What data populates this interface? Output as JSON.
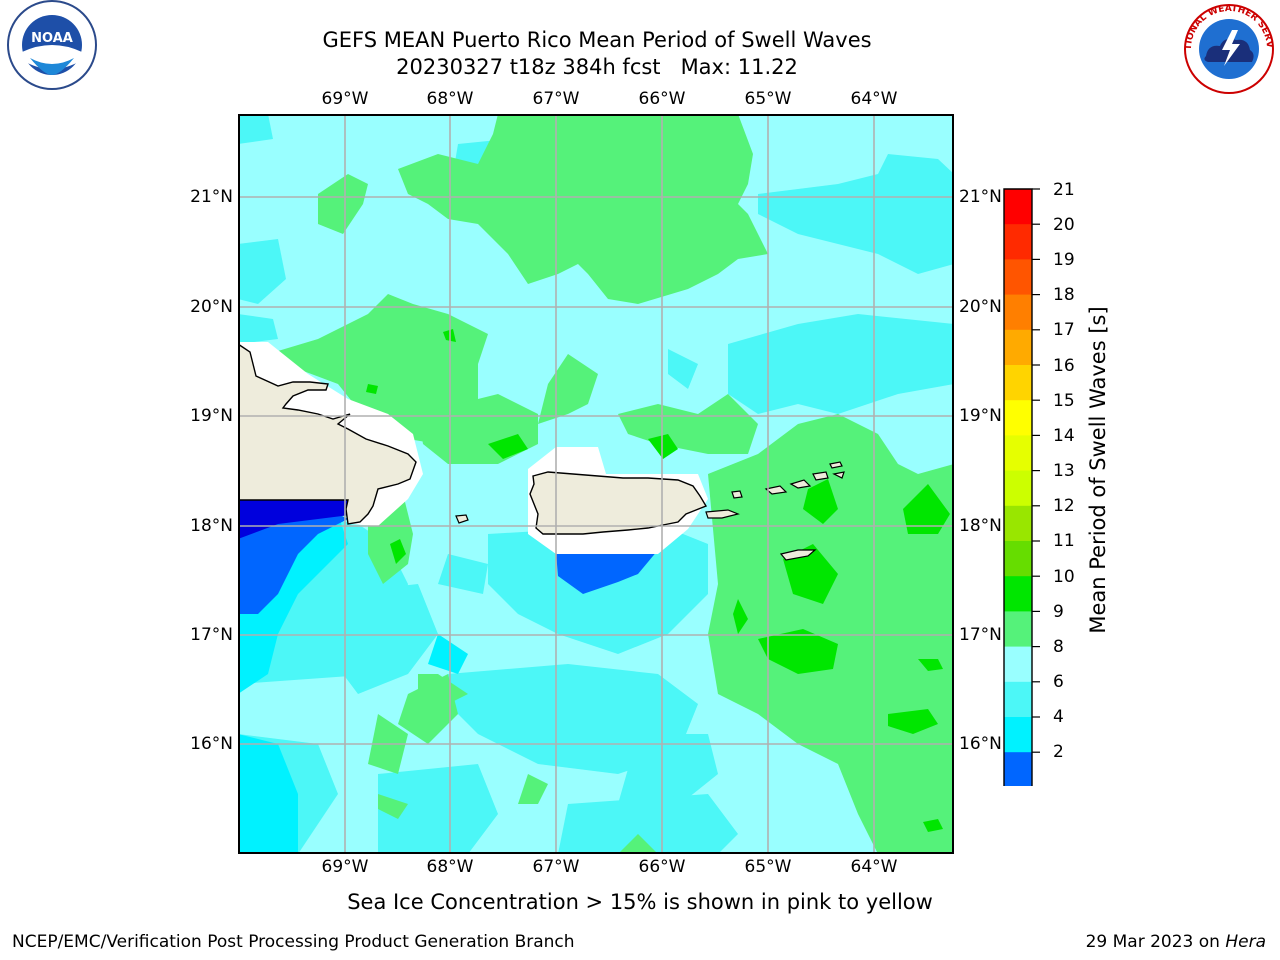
{
  "header": {
    "title_line1": "GEFS MEAN Puerto Rico Mean Period of Swell Waves",
    "title_line2": "20230327 t18z 384h fcst   Max: 11.22"
  },
  "map": {
    "lon_labels": [
      "69°W",
      "68°W",
      "67°W",
      "66°W",
      "65°W",
      "64°W"
    ],
    "lat_labels": [
      "21°N",
      "20°N",
      "19°N",
      "18°N",
      "17°N",
      "16°N"
    ],
    "colors": {
      "land": "#eeecdc",
      "ocean_light_cyan": "#99ffff",
      "ocean_cyan": "#4cf7f7",
      "ocean_aqua": "#00f2ff",
      "green_9": "#55f27a",
      "green_10": "#00e600",
      "blue_4": "#0066ff",
      "blue_2": "#0000dd"
    }
  },
  "colorbar": {
    "title": "Mean Period of Swell Waves [s]",
    "tick_labels": [
      "21",
      "20",
      "19",
      "18",
      "17",
      "16",
      "15",
      "14",
      "13",
      "12",
      "11",
      "10",
      "9",
      "8",
      "6",
      "4",
      "2"
    ],
    "colors": [
      "#ff0000",
      "#ff2a00",
      "#ff5500",
      "#ff7f00",
      "#ffaa00",
      "#ffd400",
      "#ffff00",
      "#e6ff00",
      "#ccff00",
      "#99e600",
      "#66dd00",
      "#00e600",
      "#55f27a",
      "#99ffff",
      "#4cf7f7",
      "#00f2ff",
      "#0066ff"
    ],
    "extend_color": "#0000dd"
  },
  "footer": {
    "note": "Sea Ice Concentration > 15% is shown in pink to yellow",
    "left": "NCEP/EMC/Verification Post Processing Product Generation Branch",
    "right_date": "29 Mar 2023 on ",
    "right_machine": "Hera"
  },
  "logos": {
    "noaa_text": "NOAA",
    "nws_text": "NATIONAL WEATHER SERVICE"
  }
}
